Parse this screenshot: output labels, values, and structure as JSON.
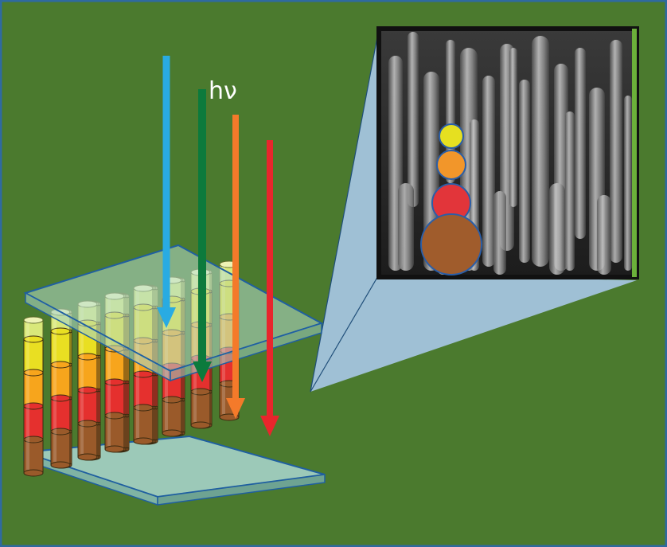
{
  "figure": {
    "background_color": "#4b7a2e",
    "border_color": "#2f6aa0",
    "photon_label": "hν"
  },
  "arrows": [
    {
      "name": "blue",
      "color": "#29abe2"
    },
    {
      "name": "green",
      "color": "#0c7a3c"
    },
    {
      "name": "orange",
      "color": "#f47a2a"
    },
    {
      "name": "red",
      "color": "#e8262c"
    }
  ],
  "layers": [
    {
      "name": "yellow",
      "color": "#e9df22"
    },
    {
      "name": "orange",
      "color": "#f7a51c"
    },
    {
      "name": "red",
      "color": "#e5302e"
    },
    {
      "name": "brown",
      "color": "#9a5a2a"
    }
  ],
  "inset": {
    "description_icon": "sem-micrograph",
    "circle_colors": [
      "#e6e020",
      "#f2962a",
      "#e2353a",
      "#a05c2c"
    ],
    "zoom_color": "#a9c8e8"
  }
}
